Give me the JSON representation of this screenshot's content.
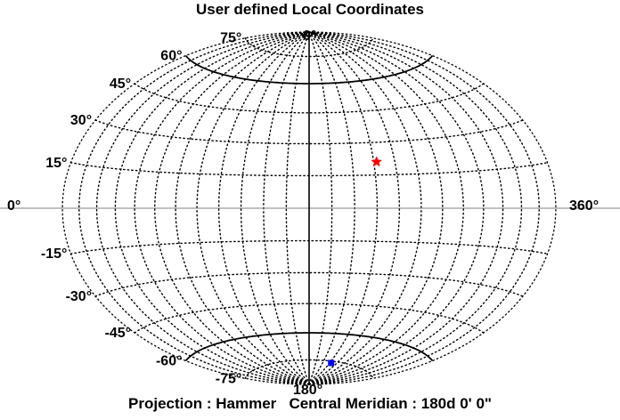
{
  "chart_data": {
    "type": "scatter",
    "title": "User defined Local Coordinates",
    "projection_label": "Projection : Hammer",
    "meridian_label": "Central Meridian : 180d 0' 0\"",
    "projection": "hammer",
    "central_meridian_deg": 180,
    "graticule": {
      "longitude_step_deg": 15,
      "latitude_step_deg": 15,
      "style": "dotted",
      "solid_latitudes": [
        60,
        -60
      ],
      "equator_and_central_meridian": "solid gray"
    },
    "lon_tick_labels": [
      "0°",
      "360°",
      "0°",
      "180°"
    ],
    "lat_tick_labels": [
      {
        "lat": 75,
        "text": "75°"
      },
      {
        "lat": 60,
        "text": "60°"
      },
      {
        "lat": 45,
        "text": "45°"
      },
      {
        "lat": 30,
        "text": "30°"
      },
      {
        "lat": 15,
        "text": "15°"
      },
      {
        "lat": -15,
        "text": "-15°"
      },
      {
        "lat": -30,
        "text": "-30°"
      },
      {
        "lat": -45,
        "text": "-45°"
      },
      {
        "lat": -60,
        "text": "-60°"
      },
      {
        "lat": -75,
        "text": "-75°"
      }
    ],
    "points": [
      {
        "lon": 227,
        "lat": 21,
        "marker": "star",
        "color": "#ff0000"
      },
      {
        "lon": 228,
        "lat": -76,
        "marker": "square",
        "color": "#0000ff"
      }
    ]
  }
}
